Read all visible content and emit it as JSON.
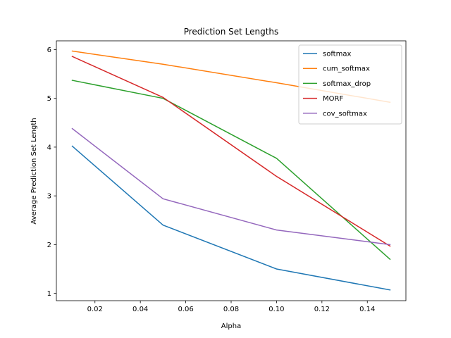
{
  "chart_data": {
    "type": "line",
    "title": "Prediction Set Lengths",
    "xlabel": "Alpha",
    "ylabel": "Average Prediction Set Length",
    "x": [
      0.01,
      0.05,
      0.1,
      0.15
    ],
    "xlim": [
      0.003,
      0.157
    ],
    "ylim": [
      0.85,
      6.18
    ],
    "xticks": [
      0.02,
      0.04,
      0.06,
      0.08,
      0.1,
      0.12,
      0.14
    ],
    "xtick_labels": [
      "0.02",
      "0.04",
      "0.06",
      "0.08",
      "0.10",
      "0.12",
      "0.14"
    ],
    "yticks": [
      1,
      2,
      3,
      4,
      5,
      6
    ],
    "ytick_labels": [
      "1",
      "2",
      "3",
      "4",
      "5",
      "6"
    ],
    "grid": false,
    "legend_position": "top-right",
    "series": [
      {
        "name": "softmax",
        "color": "#1f77b4",
        "values": [
          4.02,
          2.4,
          1.5,
          1.07
        ]
      },
      {
        "name": "cum_softmax",
        "color": "#ff7f0e",
        "values": [
          5.97,
          5.7,
          5.32,
          4.92
        ]
      },
      {
        "name": "softmax_drop",
        "color": "#2ca02c",
        "values": [
          5.37,
          5.0,
          3.77,
          1.7
        ]
      },
      {
        "name": "MORF",
        "color": "#d62728",
        "values": [
          5.86,
          5.02,
          3.4,
          1.97
        ]
      },
      {
        "name": "cov_softmax",
        "color": "#9467bd",
        "values": [
          4.38,
          2.94,
          2.3,
          2.0
        ]
      }
    ]
  }
}
